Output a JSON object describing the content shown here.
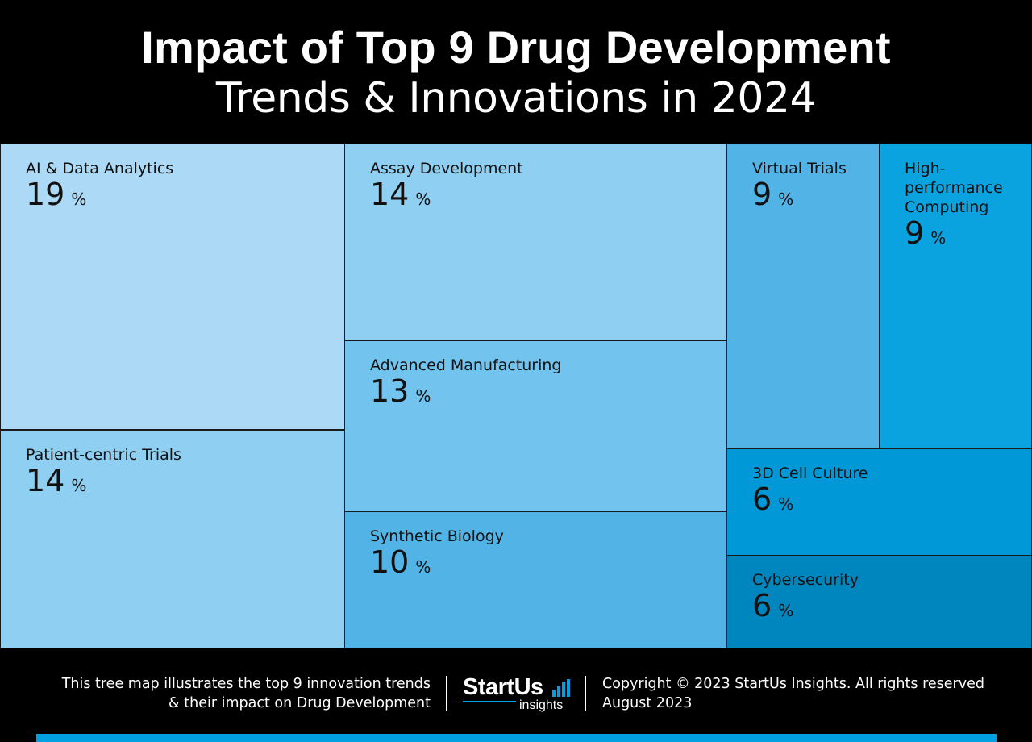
{
  "header": {
    "title_line1": "Impact of Top 9 Drug Development",
    "title_line2": "Trends & Innovations in 2024"
  },
  "chart_data": {
    "type": "treemap",
    "title": "Impact of Top 9 Drug Development Trends & Innovations in 2024",
    "unit": "%",
    "items": [
      {
        "label": "AI & Data Analytics",
        "value": 19,
        "color": "#acdaf6"
      },
      {
        "label": "Patient-centric Trials",
        "value": 14,
        "color": "#8ecff2"
      },
      {
        "label": "Assay Development",
        "value": 14,
        "color": "#8ecff2"
      },
      {
        "label": "Advanced Manufacturing",
        "value": 13,
        "color": "#72c3ed"
      },
      {
        "label": "Synthetic Biology",
        "value": 10,
        "color": "#52b4e6"
      },
      {
        "label": "Virtual Trials",
        "value": 9,
        "color": "#52b4e6"
      },
      {
        "label": "High-\nperformance\nComputing",
        "value": 9,
        "color": "#0aa2df"
      },
      {
        "label": "3D Cell Culture",
        "value": 6,
        "color": "#0098d6"
      },
      {
        "label": "Cybersecurity",
        "value": 6,
        "color": "#0086be"
      }
    ]
  },
  "footer": {
    "description_line1": "This tree map illustrates the top 9 innovation trends",
    "description_line2": "& their impact on Drug Development",
    "logo_main": "StartUs",
    "logo_sub": "insights",
    "copyright": "Copyright © 2023 StartUs Insights. All rights reserved",
    "date": "August 2023",
    "accent_color": "#00a0e3"
  }
}
